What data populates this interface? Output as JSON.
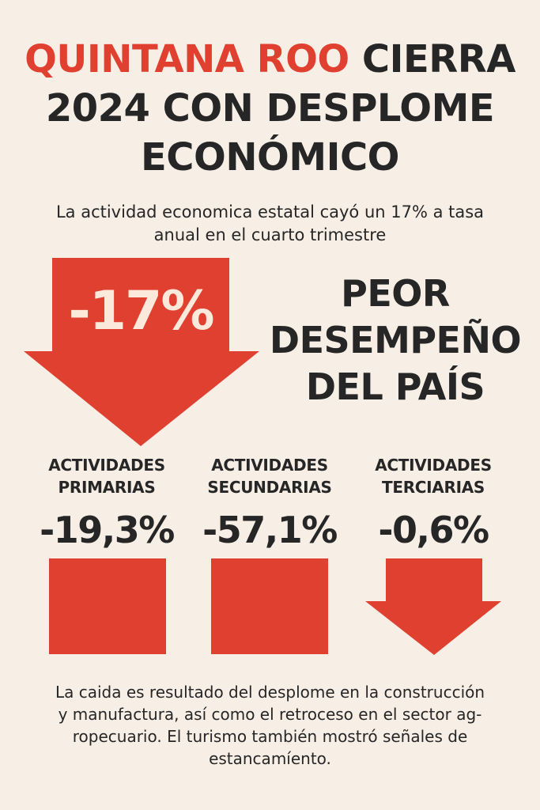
{
  "headline": {
    "accent": "QUINTANA ROO",
    "line1_rest": "CIERRA",
    "line2": "2024 CON DESPLOME",
    "line3": "ECONÓMICO"
  },
  "subtitle": {
    "line1": "La actividad economica estatal cayó un 17% a tasa",
    "line2": "anual en el cuarto trimestre"
  },
  "main_figure": {
    "value": "-17%",
    "caption_line1": "PEOR",
    "caption_line2": "DESEMPEÑO",
    "caption_line3": "DEL PAÍS"
  },
  "sectors": [
    {
      "label_line1": "ACTIVIDADES",
      "label_line2": "PRIMARIAS",
      "value": "-19,3%"
    },
    {
      "label_line1": "ACTIVIDADES",
      "label_line2": "SECUNDARIAS",
      "value": "-57,1%"
    },
    {
      "label_line1": "ACTIVIDADES",
      "label_line2": "TERCIARIAS",
      "value": "-0,6%"
    }
  ],
  "footer": {
    "line1": "La caida es resultado del desplome en la construcción",
    "line2": "y manufactura, así como el retroceso en el sector ag-",
    "line3": "ropecuario. El turismo también mostró señales de",
    "line4": "estancamíento."
  },
  "colors": {
    "accent": "#e0402f",
    "background": "#f7efe6",
    "text": "#262626"
  }
}
